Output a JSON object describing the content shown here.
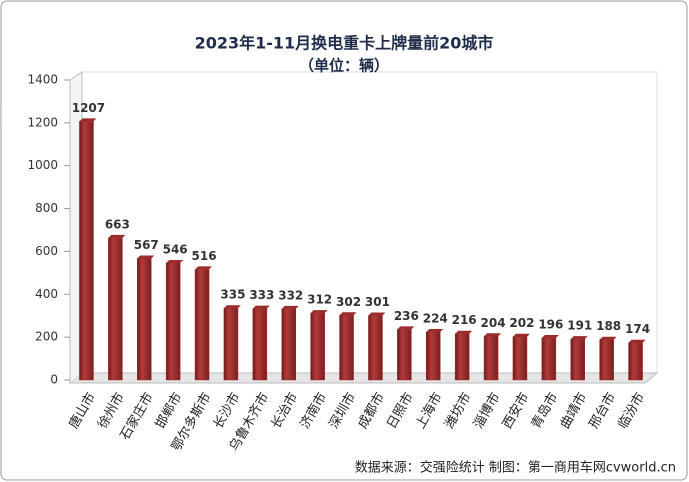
{
  "chart_data": {
    "type": "bar",
    "title": "2023年1-11月换电重卡上牌量前20城市",
    "subtitle": "（单位：辆）",
    "source": "数据来源：交强险统计   制图：第一商用车网cvworld.cn",
    "categories": [
      "唐山市",
      "徐州市",
      "石家庄市",
      "邯郸市",
      "鄂尔多斯市",
      "长沙市",
      "乌鲁木齐市",
      "长治市",
      "济南市",
      "深圳市",
      "成都市",
      "日照市",
      "上海市",
      "潍坊市",
      "淄博市",
      "西安市",
      "青岛市",
      "曲靖市",
      "邢台市",
      "临汾市"
    ],
    "values": [
      1207,
      663,
      567,
      546,
      516,
      335,
      333,
      332,
      312,
      302,
      301,
      236,
      224,
      216,
      204,
      202,
      196,
      191,
      188,
      174
    ],
    "color": "#9b2c2c",
    "ylim": [
      0,
      1400
    ],
    "yticks": [
      0,
      200,
      400,
      600,
      800,
      1000,
      1200,
      1400
    ],
    "grid": false
  }
}
